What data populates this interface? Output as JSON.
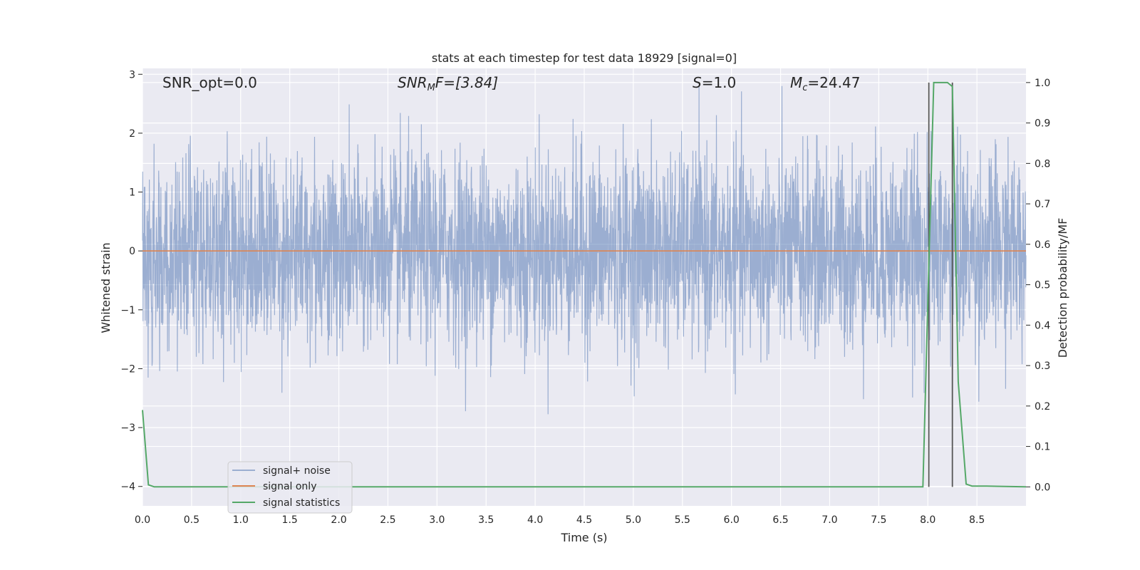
{
  "chart_data": {
    "type": "line",
    "title": "stats at each timestep for test data 18929 [signal=0]",
    "xlabel": "Time (s)",
    "ylabel": "Whitened strain",
    "y2label": "Detection probability/MF",
    "xlim": [
      0,
      9.0
    ],
    "ylim": [
      -4.33,
      3.1
    ],
    "y2lim": [
      -0.047,
      1.035
    ],
    "x_ticks": [
      "0.0",
      "0.5",
      "1.0",
      "1.5",
      "2.0",
      "2.5",
      "3.0",
      "3.5",
      "4.0",
      "4.5",
      "5.0",
      "5.5",
      "6.0",
      "6.5",
      "7.0",
      "7.5",
      "8.0",
      "8.5"
    ],
    "y_ticks": [
      "3",
      "2",
      "1",
      "0",
      "−1",
      "−2",
      "−3",
      "−4"
    ],
    "y2_ticks": [
      "1.0",
      "0.9",
      "0.8",
      "0.7",
      "0.6",
      "0.5",
      "0.4",
      "0.3",
      "0.2",
      "0.1",
      "0.0"
    ],
    "grid": true,
    "legend_position": "lower-left",
    "colors": {
      "background": "#eaeaf2",
      "grid": "#ffffff",
      "noise": "#4c72b0",
      "signal": "#dd8452",
      "statistic": "#55a868",
      "marker": "#555555"
    },
    "series": [
      {
        "name": "signal+ noise",
        "axis": "left",
        "description": "whitened noisy strain, roughly standard normal, extremes about +2.8 / -2.8"
      },
      {
        "name": "signal only",
        "axis": "left",
        "x": [
          0.0,
          9.0
        ],
        "y": [
          0.0,
          0.0
        ]
      },
      {
        "name": "signal statistics",
        "axis": "right",
        "x": [
          0.0,
          0.06,
          0.12,
          0.5,
          1.0,
          2.0,
          3.0,
          4.0,
          5.0,
          6.0,
          7.0,
          7.5,
          7.95,
          8.06,
          8.2,
          8.25,
          8.31,
          8.39,
          8.45,
          8.6,
          9.0
        ],
        "y": [
          0.19,
          0.005,
          0.0,
          0.0,
          0.0,
          0.0,
          0.0,
          0.0,
          0.0,
          0.0,
          0.0,
          0.0,
          0.0,
          1.0,
          1.0,
          0.99,
          0.26,
          0.007,
          0.002,
          0.002,
          0.0
        ]
      }
    ],
    "markers": [
      {
        "x": 8.01,
        "y2_range": [
          0.0,
          1.0
        ]
      },
      {
        "x": 8.25,
        "y2_range": [
          0.0,
          1.0
        ]
      }
    ],
    "annotations": [
      {
        "label": "SNR_opt=0.0",
        "x": 0.2
      },
      {
        "label": "SNR_MF=[3.84]",
        "x": 2.6,
        "parts": [
          "SNR",
          "M",
          "F=[3.84]"
        ]
      },
      {
        "label": "S=1.0",
        "x": 5.6,
        "parts": [
          "S",
          "=1.0"
        ]
      },
      {
        "label": "M_c=24.47",
        "x": 6.6,
        "parts": [
          "M",
          "c",
          "=24.47"
        ]
      }
    ]
  }
}
